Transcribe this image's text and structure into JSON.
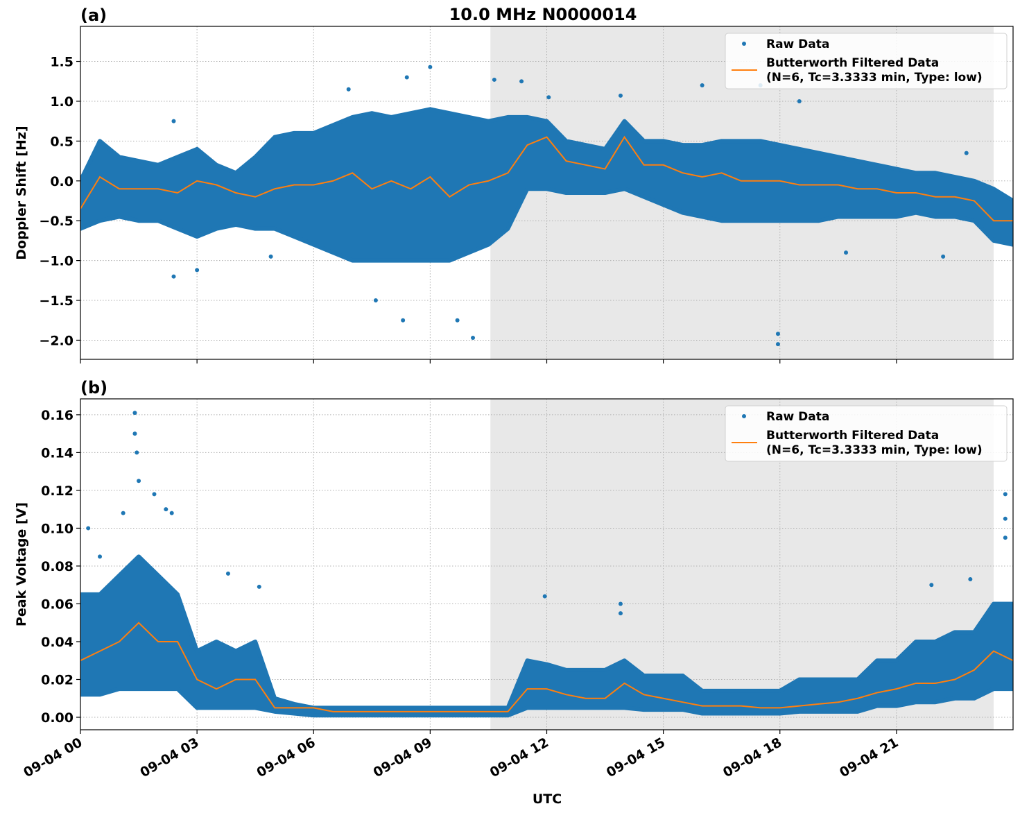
{
  "title": "10.0 MHz N0000014",
  "xlabel": "UTC",
  "colors": {
    "raw": "#1f77b4",
    "filtered": "#ff7f0e",
    "shade": "#e8e8e8",
    "grid": "#b0b0b0"
  },
  "chart_data": [
    {
      "panel": "(a)",
      "type": "scatter",
      "ylabel": "Doppler Shift [Hz]",
      "xlim_hours": [
        0,
        24
      ],
      "ylim": [
        -2.24,
        1.94
      ],
      "x_ticks": [
        "09-04 00",
        "09-04 03",
        "09-04 06",
        "09-04 09",
        "09-04 12",
        "09-04 15",
        "09-04 18",
        "09-04 21"
      ],
      "y_ticks": [
        -2.0,
        -1.5,
        -1.0,
        -0.5,
        0.0,
        0.5,
        1.0,
        1.5
      ],
      "y_tick_labels": [
        "−2.0",
        "−1.5",
        "−1.0",
        "−0.5",
        "0.0",
        "0.5",
        "1.0",
        "1.5"
      ],
      "shaded_span_hours": [
        10.55,
        23.5
      ],
      "grid": true,
      "legend": {
        "placement": "top-right",
        "entries": [
          "Raw Data",
          "Butterworth Filtered Data",
          "(N=6, Tc=3.3333 min, Type: low)"
        ]
      },
      "x_hours": [
        0,
        0.5,
        1,
        1.5,
        2,
        2.5,
        3,
        3.5,
        4,
        4.5,
        5,
        5.5,
        6,
        6.5,
        7,
        7.5,
        8,
        8.5,
        9,
        9.5,
        10,
        10.5,
        11,
        11.5,
        12,
        12.5,
        13,
        13.5,
        14,
        14.5,
        15,
        15.5,
        16,
        16.5,
        17,
        17.5,
        18,
        18.5,
        19,
        19.5,
        20,
        20.5,
        21,
        21.5,
        22,
        22.5,
        23,
        23.5,
        24
      ],
      "filtered": [
        -0.35,
        0.05,
        -0.1,
        -0.1,
        -0.1,
        -0.15,
        0.0,
        -0.05,
        -0.15,
        -0.2,
        -0.1,
        -0.05,
        -0.05,
        0.0,
        0.1,
        -0.1,
        0.0,
        -0.1,
        0.05,
        -0.2,
        -0.05,
        0.0,
        0.1,
        0.45,
        0.55,
        0.25,
        0.2,
        0.15,
        0.55,
        0.2,
        0.2,
        0.1,
        0.05,
        0.1,
        0.0,
        0.0,
        0.0,
        -0.05,
        -0.05,
        -0.05,
        -0.1,
        -0.1,
        -0.15,
        -0.15,
        -0.2,
        -0.2,
        -0.25,
        -0.5,
        -0.5
      ],
      "raw_low": [
        -0.6,
        -0.5,
        -0.45,
        -0.5,
        -0.5,
        -0.6,
        -0.7,
        -0.6,
        -0.55,
        -0.6,
        -0.6,
        -0.7,
        -0.8,
        -0.9,
        -1.0,
        -1.0,
        -1.0,
        -1.0,
        -1.0,
        -1.0,
        -0.9,
        -0.8,
        -0.6,
        -0.1,
        -0.1,
        -0.15,
        -0.15,
        -0.15,
        -0.1,
        -0.2,
        -0.3,
        -0.4,
        -0.45,
        -0.5,
        -0.5,
        -0.5,
        -0.5,
        -0.5,
        -0.5,
        -0.45,
        -0.45,
        -0.45,
        -0.45,
        -0.4,
        -0.45,
        -0.45,
        -0.5,
        -0.75,
        -0.8
      ],
      "raw_high": [
        0.0,
        0.5,
        0.3,
        0.25,
        0.2,
        0.3,
        0.4,
        0.2,
        0.1,
        0.3,
        0.55,
        0.6,
        0.6,
        0.7,
        0.8,
        0.85,
        0.8,
        0.85,
        0.9,
        0.85,
        0.8,
        0.75,
        0.8,
        0.8,
        0.75,
        0.5,
        0.45,
        0.4,
        0.75,
        0.5,
        0.5,
        0.45,
        0.45,
        0.5,
        0.5,
        0.5,
        0.45,
        0.4,
        0.35,
        0.3,
        0.25,
        0.2,
        0.15,
        0.1,
        0.1,
        0.05,
        0.0,
        -0.1,
        -0.25
      ],
      "outliers": [
        [
          2.4,
          0.75
        ],
        [
          2.4,
          -1.2
        ],
        [
          3.0,
          -1.12
        ],
        [
          4.9,
          -0.95
        ],
        [
          6.9,
          1.15
        ],
        [
          7.6,
          -1.5
        ],
        [
          8.3,
          -1.75
        ],
        [
          8.4,
          1.3
        ],
        [
          9.0,
          1.43
        ],
        [
          9.7,
          -1.75
        ],
        [
          10.1,
          -1.97
        ],
        [
          10.65,
          1.27
        ],
        [
          11.35,
          1.25
        ],
        [
          12.05,
          1.05
        ],
        [
          13.9,
          1.07
        ],
        [
          16.0,
          1.2
        ],
        [
          17.5,
          1.2
        ],
        [
          17.95,
          -2.05
        ],
        [
          17.95,
          -1.92
        ],
        [
          18.5,
          1.0
        ],
        [
          19.7,
          -0.9
        ],
        [
          22.2,
          -0.95
        ],
        [
          22.8,
          0.35
        ]
      ]
    },
    {
      "panel": "(b)",
      "type": "scatter",
      "ylabel": "Peak Voltage [V]",
      "xlim_hours": [
        0,
        24
      ],
      "ylim": [
        -0.0066,
        0.1684
      ],
      "x_ticks": [
        "09-04 00",
        "09-04 03",
        "09-04 06",
        "09-04 09",
        "09-04 12",
        "09-04 15",
        "09-04 18",
        "09-04 21"
      ],
      "y_ticks": [
        0.0,
        0.02,
        0.04,
        0.06,
        0.08,
        0.1,
        0.12,
        0.14,
        0.16
      ],
      "y_tick_labels": [
        "0.00",
        "0.02",
        "0.04",
        "0.06",
        "0.08",
        "0.10",
        "0.12",
        "0.14",
        "0.16"
      ],
      "shaded_span_hours": [
        10.55,
        23.5
      ],
      "grid": true,
      "legend": {
        "placement": "top-right",
        "entries": [
          "Raw Data",
          "Butterworth Filtered Data",
          "(N=6, Tc=3.3333 min, Type: low)"
        ]
      },
      "x_hours": [
        0,
        0.5,
        1,
        1.5,
        2,
        2.5,
        3,
        3.5,
        4,
        4.5,
        5,
        5.5,
        6,
        6.5,
        7,
        7.5,
        8,
        8.5,
        9,
        9.5,
        10,
        10.5,
        11,
        11.5,
        12,
        12.5,
        13,
        13.5,
        14,
        14.5,
        15,
        15.5,
        16,
        16.5,
        17,
        17.5,
        18,
        18.5,
        19,
        19.5,
        20,
        20.5,
        21,
        21.5,
        22,
        22.5,
        23,
        23.5,
        24
      ],
      "filtered": [
        0.03,
        0.035,
        0.04,
        0.05,
        0.04,
        0.04,
        0.02,
        0.015,
        0.02,
        0.02,
        0.005,
        0.005,
        0.005,
        0.003,
        0.003,
        0.003,
        0.003,
        0.003,
        0.003,
        0.003,
        0.003,
        0.003,
        0.003,
        0.015,
        0.015,
        0.012,
        0.01,
        0.01,
        0.018,
        0.012,
        0.01,
        0.008,
        0.006,
        0.006,
        0.006,
        0.005,
        0.005,
        0.006,
        0.007,
        0.008,
        0.01,
        0.013,
        0.015,
        0.018,
        0.018,
        0.02,
        0.025,
        0.035,
        0.03
      ],
      "raw_low": [
        0.012,
        0.012,
        0.015,
        0.015,
        0.015,
        0.015,
        0.005,
        0.005,
        0.005,
        0.005,
        0.003,
        0.002,
        0.001,
        0.001,
        0.001,
        0.001,
        0.001,
        0.001,
        0.001,
        0.001,
        0.001,
        0.001,
        0.001,
        0.005,
        0.005,
        0.005,
        0.005,
        0.005,
        0.005,
        0.004,
        0.004,
        0.004,
        0.002,
        0.002,
        0.002,
        0.002,
        0.002,
        0.003,
        0.003,
        0.003,
        0.003,
        0.006,
        0.006,
        0.008,
        0.008,
        0.01,
        0.01,
        0.015,
        0.015
      ],
      "raw_high": [
        0.065,
        0.065,
        0.075,
        0.085,
        0.075,
        0.065,
        0.035,
        0.04,
        0.035,
        0.04,
        0.01,
        0.007,
        0.005,
        0.005,
        0.005,
        0.005,
        0.005,
        0.005,
        0.005,
        0.005,
        0.005,
        0.005,
        0.005,
        0.03,
        0.028,
        0.025,
        0.025,
        0.025,
        0.03,
        0.022,
        0.022,
        0.022,
        0.014,
        0.014,
        0.014,
        0.014,
        0.014,
        0.02,
        0.02,
        0.02,
        0.02,
        0.03,
        0.03,
        0.04,
        0.04,
        0.045,
        0.045,
        0.06,
        0.06
      ],
      "outliers": [
        [
          0.2,
          0.1
        ],
        [
          0.5,
          0.085
        ],
        [
          1.1,
          0.108
        ],
        [
          1.4,
          0.161
        ],
        [
          1.4,
          0.15
        ],
        [
          1.45,
          0.14
        ],
        [
          1.5,
          0.125
        ],
        [
          1.9,
          0.118
        ],
        [
          2.2,
          0.11
        ],
        [
          2.35,
          0.108
        ],
        [
          3.8,
          0.076
        ],
        [
          4.6,
          0.069
        ],
        [
          11.95,
          0.064
        ],
        [
          13.9,
          0.06
        ],
        [
          13.9,
          0.055
        ],
        [
          21.9,
          0.07
        ],
        [
          22.9,
          0.073
        ],
        [
          23.8,
          0.118
        ],
        [
          23.8,
          0.105
        ],
        [
          23.8,
          0.095
        ]
      ]
    }
  ]
}
